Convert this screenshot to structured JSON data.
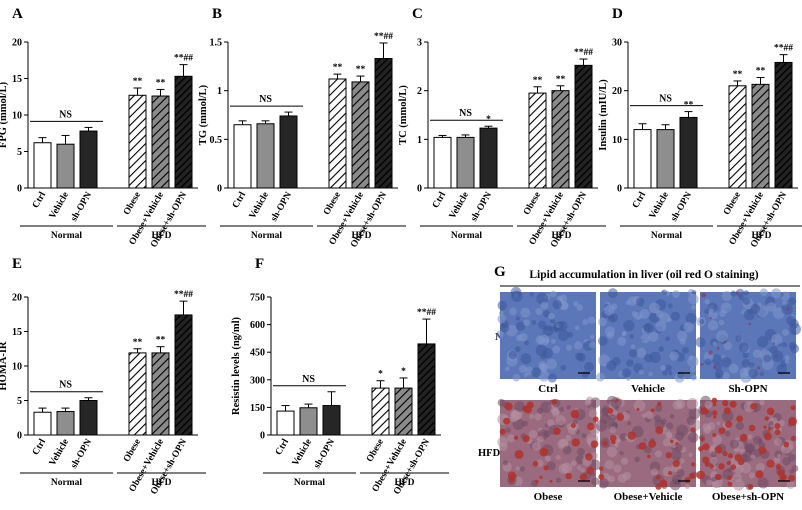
{
  "chart_data": [
    {
      "panel": "A",
      "type": "bar",
      "ylabel": "FPG (mmol/L)",
      "ylim": [
        0,
        20
      ],
      "yticks": [
        0,
        5,
        10,
        15,
        20
      ],
      "categories": [
        "Ctrl",
        "Vehicle",
        "sh-OPN",
        "Obese",
        "Obese+Vehicle",
        "Obese+sh-OPN"
      ],
      "values": [
        6.2,
        6.0,
        7.8,
        12.7,
        12.6,
        15.3
      ],
      "errors": [
        0.7,
        1.2,
        0.5,
        1.0,
        0.9,
        1.6
      ],
      "sig": [
        "",
        "",
        "",
        "**",
        "**",
        "**##"
      ],
      "groups": [
        {
          "label": "Normal"
        },
        {
          "label": "HFD"
        }
      ],
      "ns": "NS"
    },
    {
      "panel": "B",
      "type": "bar",
      "ylabel": "TG (mmol/L)",
      "ylim": [
        0,
        1.5
      ],
      "yticks": [
        0.0,
        0.5,
        1.0,
        1.5
      ],
      "categories": [
        "Ctrl",
        "Vehicle",
        "sh-OPN",
        "Obese",
        "Obese+Vehicle",
        "Obese+sh-OPN"
      ],
      "values": [
        0.65,
        0.66,
        0.74,
        1.12,
        1.09,
        1.33
      ],
      "errors": [
        0.04,
        0.03,
        0.04,
        0.05,
        0.06,
        0.16
      ],
      "sig": [
        "",
        "",
        "",
        "**",
        "**",
        "**##"
      ],
      "groups": [
        {
          "label": "Normal"
        },
        {
          "label": "HFD"
        }
      ],
      "ns": "NS"
    },
    {
      "panel": "C",
      "type": "bar",
      "ylabel": "TC (mmol/L)",
      "ylim": [
        0,
        3
      ],
      "yticks": [
        0,
        1,
        2,
        3
      ],
      "categories": [
        "Ctrl",
        "Vehicle",
        "sh-OPN",
        "Obese",
        "Obese+Vehicle",
        "Obese+sh-OPN"
      ],
      "values": [
        1.04,
        1.04,
        1.23,
        1.95,
        2.0,
        2.52
      ],
      "errors": [
        0.04,
        0.05,
        0.04,
        0.13,
        0.1,
        0.13
      ],
      "sig": [
        "",
        "",
        "*",
        "**",
        "**",
        "**##"
      ],
      "groups": [
        {
          "label": "Normal"
        },
        {
          "label": "HFD"
        }
      ],
      "ns": "NS"
    },
    {
      "panel": "D",
      "type": "bar",
      "ylabel": "Insulin (mIU/L)",
      "ylim": [
        0,
        30
      ],
      "yticks": [
        0,
        10,
        20,
        30
      ],
      "categories": [
        "Ctrl",
        "Vehicle",
        "sh-OPN",
        "Obese",
        "Obese+Vehicle",
        "Obese+sh-OPN"
      ],
      "values": [
        12.0,
        12.0,
        14.5,
        21.0,
        21.3,
        25.8
      ],
      "errors": [
        1.2,
        1.0,
        1.2,
        1.0,
        1.4,
        1.6
      ],
      "sig": [
        "",
        "",
        "**",
        "**",
        "**",
        "**##"
      ],
      "groups": [
        {
          "label": "Normal"
        },
        {
          "label": "HFD"
        }
      ],
      "ns": "NS"
    },
    {
      "panel": "E",
      "type": "bar",
      "ylabel": "HOMA-IR",
      "ylim": [
        0,
        20
      ],
      "yticks": [
        0,
        5,
        10,
        15,
        20
      ],
      "categories": [
        "Ctrl",
        "Vehicle",
        "sh-OPN",
        "Obese",
        "Obese+Vehicle",
        "Obese+sh-OPN"
      ],
      "values": [
        3.3,
        3.4,
        5.0,
        11.9,
        11.9,
        17.4
      ],
      "errors": [
        0.6,
        0.5,
        0.4,
        0.6,
        0.9,
        2.0
      ],
      "sig": [
        "",
        "",
        "",
        "**",
        "**",
        "**##"
      ],
      "groups": [
        {
          "label": "Normal"
        },
        {
          "label": "HFD"
        }
      ],
      "ns": "NS"
    },
    {
      "panel": "F",
      "type": "bar",
      "ylabel": "Resistin levels (ng/ml)",
      "ylim": [
        0,
        750
      ],
      "yticks": [
        0,
        150,
        300,
        450,
        600,
        750
      ],
      "categories": [
        "Ctrl",
        "Vehicle",
        "sh-OPN",
        "Obese",
        "Obese+Vehicle",
        "Obese+sh-OPN"
      ],
      "values": [
        130,
        148,
        160,
        255,
        255,
        495
      ],
      "errors": [
        30,
        20,
        75,
        40,
        55,
        135
      ],
      "sig": [
        "",
        "",
        "",
        "*",
        "*",
        "**##"
      ],
      "groups": [
        {
          "label": "Normal"
        },
        {
          "label": "HFD"
        }
      ],
      "ns": "NS"
    }
  ],
  "histology": {
    "panel": "G",
    "title": "Lipid accumulation in liver (oil red O staining)",
    "rows": [
      {
        "label": "Normal",
        "captions": [
          "Ctrl",
          "Vehicle",
          "Sh-OPN"
        ]
      },
      {
        "label": "HFD",
        "captions": [
          "Obese",
          "Obese+Vehicle",
          "Obese+sh-OPN"
        ]
      }
    ],
    "colors": {
      "normal_stain": "#5b77b8",
      "hfd_stain": "#9a6a7e",
      "lipid": "#b0312c"
    }
  }
}
